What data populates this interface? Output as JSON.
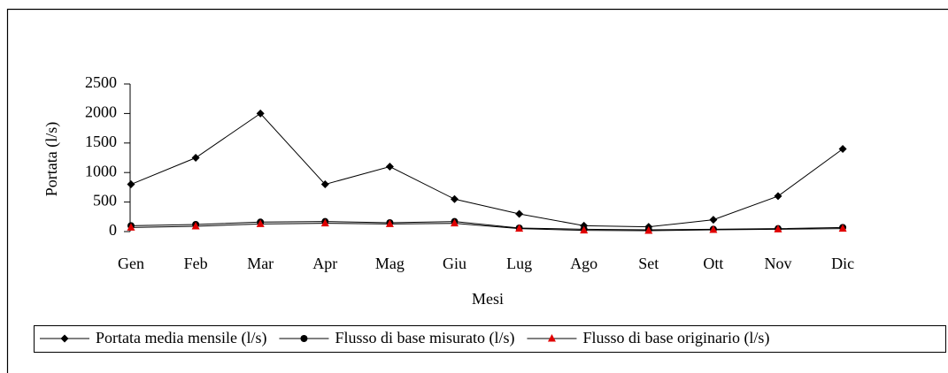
{
  "chart_data": {
    "type": "line",
    "x_label": "Mesi",
    "y_label": "Portata (l/s)",
    "categories": [
      "Gen",
      "Feb",
      "Mar",
      "Apr",
      "Mag",
      "Giu",
      "Lug",
      "Ago",
      "Set",
      "Ott",
      "Nov",
      "Dic"
    ],
    "series": [
      {
        "name": "Portata media mensile (l/s)",
        "color": "#000000",
        "marker": "diamond",
        "values": [
          800,
          1250,
          2000,
          800,
          1100,
          550,
          300,
          100,
          80,
          200,
          600,
          1400
        ]
      },
      {
        "name": "Flusso di base misurato (l/s)",
        "color": "#000000",
        "marker": "circle",
        "values": [
          100,
          120,
          160,
          170,
          150,
          170,
          60,
          40,
          30,
          40,
          50,
          70
        ]
      },
      {
        "name": "Flusso di base originario (l/s)",
        "color": "#e00000",
        "marker": "triangle",
        "values": [
          70,
          90,
          130,
          140,
          130,
          140,
          50,
          20,
          15,
          30,
          40,
          50
        ]
      }
    ],
    "ylim": [
      0,
      2500
    ],
    "yticks": [
      0,
      500,
      1000,
      1500,
      2000,
      2500
    ],
    "grid": false,
    "legend": "bottom"
  }
}
